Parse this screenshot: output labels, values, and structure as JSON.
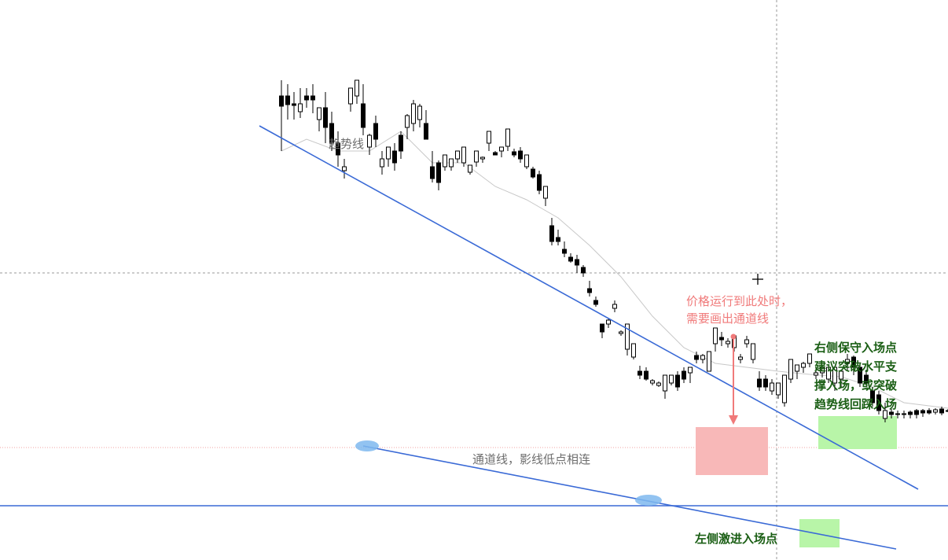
{
  "chart_data": {
    "type": "candlestick",
    "title": "",
    "xlabel": "",
    "ylabel": "",
    "grid": false,
    "ylim": [
      0,
      712
    ],
    "value_note": "",
    "colors": {
      "up_body": "#ffffff",
      "down_body": "#000000",
      "wick": "#000000",
      "moving_average": "#c8c8c8",
      "trendline": "#3a6ad6",
      "horizontal_support": "#3a6ad6",
      "touch_marker": "#7fb8ee",
      "entry_zone": "#b8f5a8",
      "consolidation_zone": "#f8b8b8",
      "arrow": "#f07a7a",
      "crosshair": "#999999",
      "level_dotted": "#f0a0a0"
    },
    "candles": [
      [
        712,
        590,
        577,
        610,
        520
      ],
      [
        704,
        590,
        579,
        605,
        560
      ],
      [
        696,
        580,
        578,
        595,
        560
      ],
      [
        688,
        570,
        580,
        600,
        562
      ],
      [
        680,
        590,
        585,
        600,
        575
      ],
      [
        672,
        590,
        585,
        605,
        568
      ],
      [
        664,
        560,
        575,
        575,
        545
      ],
      [
        656,
        575,
        550,
        595,
        530
      ],
      [
        648,
        555,
        530,
        570,
        520
      ],
      [
        640,
        530,
        515,
        545,
        500
      ],
      [
        632,
        495,
        500,
        510,
        485
      ],
      [
        624,
        580,
        600,
        595,
        570
      ],
      [
        616,
        590,
        610,
        600,
        580
      ],
      [
        608,
        580,
        550,
        605,
        540
      ],
      [
        600,
        525,
        540,
        542,
        515
      ],
      [
        592,
        555,
        535,
        565,
        525
      ],
      [
        584,
        500,
        510,
        520,
        490
      ],
      [
        576,
        510,
        525,
        525,
        500
      ],
      [
        568,
        520,
        505,
        530,
        495
      ],
      [
        560,
        540,
        520,
        545,
        510
      ],
      [
        552,
        550,
        565,
        567,
        535
      ],
      [
        544,
        555,
        580,
        585,
        545
      ],
      [
        536,
        560,
        577,
        580,
        550
      ],
      [
        528,
        555,
        535,
        572,
        548
      ],
      [
        520,
        500,
        485,
        520,
        480
      ],
      [
        512,
        505,
        480,
        508,
        470
      ],
      [
        504,
        500,
        515,
        515,
        495
      ],
      [
        496,
        500,
        510,
        508,
        495
      ],
      [
        488,
        510,
        520,
        515,
        505
      ],
      [
        480,
        505,
        525,
        518,
        500
      ],
      [
        472,
        493,
        502,
        500,
        490
      ],
      [
        464,
        506,
        520,
        515,
        500
      ],
      [
        456,
        510,
        512,
        513,
        505
      ],
      [
        448,
        530,
        545,
        542,
        520
      ],
      [
        440,
        518,
        515,
        520,
        515
      ],
      [
        432,
        520,
        525,
        522,
        512
      ],
      [
        424,
        526,
        548,
        545,
        520
      ],
      [
        416,
        519,
        515,
        523,
        512
      ],
      [
        408,
        520,
        510,
        525,
        505
      ],
      [
        400,
        500,
        515,
        508,
        497
      ],
      [
        392,
        497,
        487,
        500,
        485
      ],
      [
        384,
        490,
        470,
        495,
        465
      ],
      [
        376,
        460,
        475,
        475,
        450
      ],
      [
        368,
        425,
        405,
        435,
        400
      ],
      [
        360,
        410,
        405,
        420,
        400
      ],
      [
        352,
        395,
        390,
        405,
        385
      ],
      [
        344,
        385,
        380,
        390,
        378
      ],
      [
        336,
        382,
        375,
        388,
        365
      ],
      [
        328,
        372,
        365,
        375,
        360
      ],
      [
        320,
        345,
        340,
        355,
        335
      ],
      [
        312,
        330,
        325,
        335,
        322
      ],
      [
        304,
        300,
        290,
        300,
        282
      ],
      [
        296,
        300,
        305,
        308,
        295
      ],
      [
        288,
        320,
        325,
        330,
        315
      ],
      [
        280,
        288,
        290,
        292,
        285
      ],
      [
        272,
        268,
        300,
        295,
        260
      ],
      [
        264,
        258,
        275,
        275,
        255
      ],
      [
        256,
        240,
        235,
        247,
        230
      ],
      [
        248,
        240,
        230,
        245,
        228
      ],
      [
        240,
        225,
        228,
        230,
        222
      ],
      [
        232,
        222,
        225,
        227,
        220
      ],
      [
        224,
        215,
        235,
        235,
        205
      ],
      [
        216,
        225,
        235,
        235,
        222
      ],
      [
        208,
        235,
        220,
        240,
        215
      ],
      [
        200,
        240,
        230,
        245,
        225
      ],
      [
        192,
        238,
        245,
        242,
        225
      ],
      [
        184,
        260,
        255,
        265,
        250
      ],
      [
        176,
        255,
        260,
        262,
        250
      ],
      [
        168,
        240,
        265,
        260,
        240
      ],
      [
        160,
        275,
        295,
        285,
        265
      ],
      [
        152,
        283,
        280,
        290,
        272
      ],
      [
        144,
        275,
        278,
        282,
        270
      ],
      [
        136,
        270,
        285,
        280,
        265
      ],
      [
        128,
        255,
        258,
        262,
        250
      ],
      [
        120,
        275,
        280,
        285,
        270
      ],
      [
        112,
        255,
        275,
        265,
        250
      ],
      [
        104,
        230,
        220,
        240,
        215
      ],
      [
        96,
        230,
        220,
        235,
        215
      ],
      [
        88,
        215,
        225,
        230,
        210
      ],
      [
        80,
        210,
        225,
        225,
        205
      ],
      [
        72,
        200,
        235,
        230,
        195
      ],
      [
        64,
        230,
        255,
        250,
        225
      ],
      [
        56,
        240,
        248,
        245,
        230
      ],
      [
        48,
        245,
        250,
        252,
        238
      ],
      [
        40,
        250,
        262,
        262,
        245
      ],
      [
        32,
        235,
        238,
        245,
        230
      ],
      [
        24,
        238,
        245,
        248,
        232
      ],
      [
        16,
        230,
        245,
        240,
        225
      ],
      [
        8,
        225,
        245,
        240,
        215
      ],
      [
        0,
        230,
        240,
        240,
        220
      ],
      [
        -8,
        250,
        255,
        262,
        240
      ],
      [
        -16,
        258,
        245,
        260,
        235
      ],
      [
        -24,
        245,
        225,
        250,
        220
      ],
      [
        -32,
        235,
        225,
        242,
        222
      ],
      [
        -40,
        215,
        200,
        220,
        195
      ],
      [
        -48,
        210,
        190,
        215,
        185
      ],
      [
        -56,
        180,
        190,
        200,
        175
      ],
      [
        -64,
        188,
        185,
        192,
        180
      ],
      [
        -72,
        186,
        185,
        190,
        180
      ],
      [
        -80,
        186,
        185,
        190,
        180
      ],
      [
        -88,
        188,
        185,
        190,
        180
      ],
      [
        -96,
        190,
        185,
        192,
        180
      ],
      [
        -104,
        190,
        187,
        192,
        182
      ],
      [
        -112,
        190,
        187,
        193,
        185
      ],
      [
        -120,
        188,
        191,
        193,
        185
      ],
      [
        -128,
        192,
        187,
        195,
        184
      ],
      [
        -136,
        190,
        190,
        192,
        188
      ],
      [
        -144,
        200,
        200,
        205,
        195
      ],
      [
        -152,
        200,
        196,
        205,
        193
      ],
      [
        -160,
        210,
        205,
        215,
        200
      ],
      [
        -168,
        195,
        198,
        200,
        190
      ],
      [
        -176,
        176,
        180,
        185,
        172
      ],
      [
        -184,
        163,
        170,
        170,
        160
      ],
      [
        -192,
        150,
        162,
        165,
        145
      ],
      [
        -200,
        125,
        143,
        142,
        120
      ],
      [
        -208,
        140,
        145,
        148,
        135
      ],
      [
        -216,
        145,
        160,
        155,
        142
      ],
      [
        -224,
        155,
        150,
        160,
        147
      ],
      [
        -232,
        149,
        145,
        154,
        142
      ],
      [
        -240,
        147,
        152,
        150,
        145
      ],
      [
        -248,
        147,
        145,
        152,
        140
      ],
      [
        -256,
        140,
        145,
        147,
        138
      ],
      [
        -264,
        135,
        140,
        143,
        130
      ],
      [
        -272,
        130,
        140,
        137,
        128
      ],
      [
        -280,
        140,
        132,
        140,
        128
      ],
      [
        -288,
        138,
        140,
        142,
        136
      ],
      [
        -296,
        135,
        140,
        140,
        133
      ],
      [
        -304,
        133,
        137,
        140,
        130
      ],
      [
        -312,
        125,
        130,
        130,
        122
      ],
      [
        -320,
        115,
        120,
        122,
        110
      ],
      [
        -328,
        105,
        110,
        110,
        100
      ],
      [
        -336,
        85,
        100,
        95,
        80
      ],
      [
        -344,
        70,
        80,
        80,
        68
      ],
      [
        -352,
        95,
        65,
        100,
        60
      ],
      [
        -360,
        55,
        70,
        70,
        50
      ],
      [
        -368,
        40,
        58,
        65,
        35
      ],
      [
        -376,
        15,
        35,
        22,
        10
      ],
      [
        -384,
        10,
        20,
        15,
        5
      ],
      [
        -392,
        5,
        10,
        12,
        2
      ],
      [
        -400,
        5,
        30,
        10,
        0
      ]
    ],
    "moving_average": [
      [
        712,
        520
      ],
      [
        680,
        535
      ],
      [
        640,
        520
      ],
      [
        600,
        520
      ],
      [
        560,
        545
      ],
      [
        520,
        505
      ],
      [
        480,
        505
      ],
      [
        440,
        475
      ],
      [
        400,
        458
      ],
      [
        360,
        435
      ],
      [
        320,
        400
      ],
      [
        280,
        360
      ],
      [
        240,
        310
      ],
      [
        200,
        270
      ],
      [
        160,
        250
      ],
      [
        120,
        245
      ],
      [
        80,
        240
      ],
      [
        40,
        236
      ],
      [
        0,
        233
      ],
      [
        -40,
        220
      ],
      [
        -80,
        200
      ],
      [
        -120,
        195
      ],
      [
        -160,
        190
      ],
      [
        -200,
        180
      ],
      [
        -240,
        160
      ],
      [
        -280,
        140
      ],
      [
        -320,
        125
      ],
      [
        -360,
        95
      ],
      [
        -400,
        60
      ]
    ],
    "overlays": {
      "trendline": [
        [
          330,
          160
        ],
        [
          1168,
          622
        ]
      ],
      "channel_line": [
        [
          462,
          567
        ],
        [
          1140,
          698
        ]
      ],
      "horizontal_support": [
        [
          0,
          643
        ],
        [
          1206,
          643
        ]
      ],
      "horizontal_dotted": [
        [
          0,
          569
        ],
        [
          1206,
          569
        ]
      ],
      "crosshair_h": [
        [
          0,
          347
        ],
        [
          1206,
          347
        ]
      ],
      "crosshair_v": [
        [
          988,
          0
        ],
        [
          988,
          712
        ]
      ],
      "cursor": [
        964,
        355
      ],
      "touch_markers": [
        [
          467,
          567,
          30,
          14
        ],
        [
          825,
          636,
          34,
          14
        ]
      ],
      "consolidation_zone": [
        885,
        543,
        977,
        604
      ],
      "entry_zones": [
        [
          1041,
          529,
          1141,
          571
        ],
        [
          1017,
          660,
          1068,
          696
        ]
      ],
      "arrow": [
        [
          933,
          428
        ],
        [
          933,
          540
        ]
      ]
    }
  },
  "annotations": {
    "trendline_label": "趋势线",
    "channel_label": "通道线，影线低点相连",
    "channel_hint_line1": "价格运行到此处时，",
    "channel_hint_line2": "需要画出通道线",
    "right_entry_line1": "右侧保守入场点",
    "right_entry_line2": "建议突破水平支",
    "right_entry_line3": "撑入场，或突破",
    "right_entry_line4": "趋势线回踩入场",
    "left_entry": "左侧激进入场点"
  }
}
